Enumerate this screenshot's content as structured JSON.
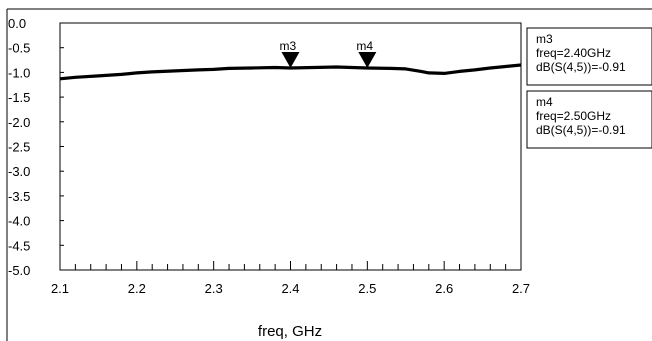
{
  "chart_data": {
    "type": "line",
    "xlabel": "freq, GHz",
    "ylabel": "",
    "xlim": [
      2.1,
      2.7
    ],
    "ylim": [
      -5.0,
      0.0
    ],
    "x_ticks": [
      "2.1",
      "2.2",
      "2.3",
      "2.4",
      "2.5",
      "2.6",
      "2.7"
    ],
    "y_ticks": [
      "0.0",
      "-0.5",
      "-1.0",
      "-1.5",
      "-2.0",
      "-2.5",
      "-3.0",
      "-3.5",
      "-4.0",
      "-4.5",
      "-5.0"
    ],
    "grid": false,
    "series": [
      {
        "x": [
          2.1,
          2.12,
          2.15,
          2.18,
          2.2,
          2.22,
          2.25,
          2.28,
          2.3,
          2.32,
          2.35,
          2.38,
          2.4,
          2.43,
          2.46,
          2.5,
          2.53,
          2.55,
          2.57,
          2.58,
          2.6,
          2.62,
          2.64,
          2.66,
          2.68,
          2.7
        ],
        "values": [
          -1.13,
          -1.1,
          -1.07,
          -1.04,
          -1.01,
          -0.99,
          -0.97,
          -0.95,
          -0.94,
          -0.92,
          -0.91,
          -0.9,
          -0.91,
          -0.9,
          -0.89,
          -0.91,
          -0.92,
          -0.93,
          -0.98,
          -1.01,
          -1.02,
          -0.98,
          -0.95,
          -0.91,
          -0.88,
          -0.85
        ]
      }
    ],
    "markers": [
      {
        "label": "m3",
        "x": 2.4,
        "y": -0.91
      },
      {
        "label": "m4",
        "x": 2.5,
        "y": -0.91
      }
    ],
    "readouts": [
      {
        "title": "m3",
        "freq": "freq=2.40GHz",
        "value": "dB(S(4,5))=-0.91"
      },
      {
        "title": "m4",
        "freq": "freq=2.50GHz",
        "value": "dB(S(4,5))=-0.91"
      }
    ]
  }
}
